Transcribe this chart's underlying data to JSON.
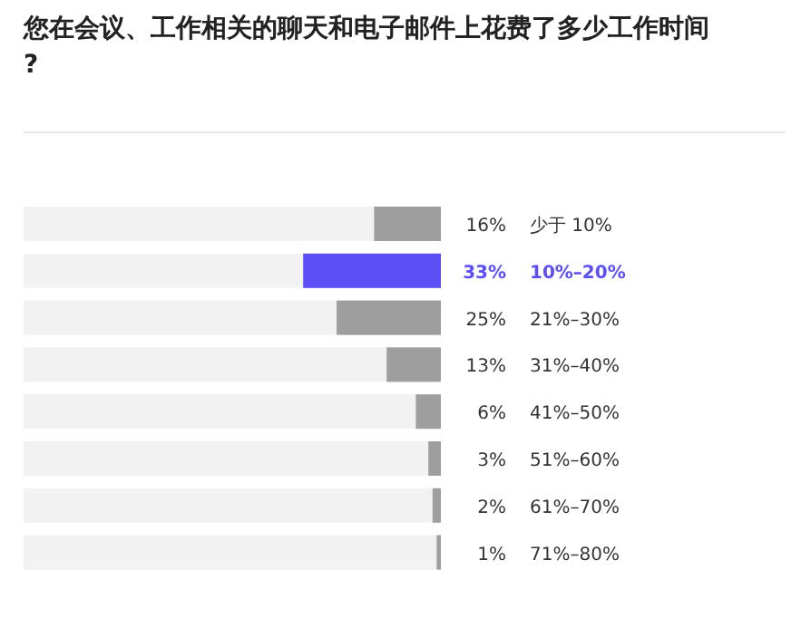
{
  "chart_data": {
    "type": "bar",
    "orientation": "horizontal",
    "title": "您在会议、工作相关的聊天和电子邮件上花费了多少工作时间?",
    "categories": [
      "少于 10%",
      "10%–20%",
      "21%–30%",
      "31%–40%",
      "41%–50%",
      "51%–60%",
      "61%–70%",
      "71%–80%"
    ],
    "values": [
      16,
      33,
      25,
      13,
      6,
      3,
      2,
      1
    ],
    "colors": [
      "#9e9e9e",
      "#5b4ff5",
      "#9e9e9e",
      "#9e9e9e",
      "#9e9e9e",
      "#9e9e9e",
      "#9e9e9e",
      "#9e9e9e"
    ],
    "value_labels": [
      "16%",
      "33%",
      "25%",
      "13%",
      "6%",
      "3%",
      "2%",
      "1%"
    ],
    "xlim": [
      100,
      0
    ]
  }
}
